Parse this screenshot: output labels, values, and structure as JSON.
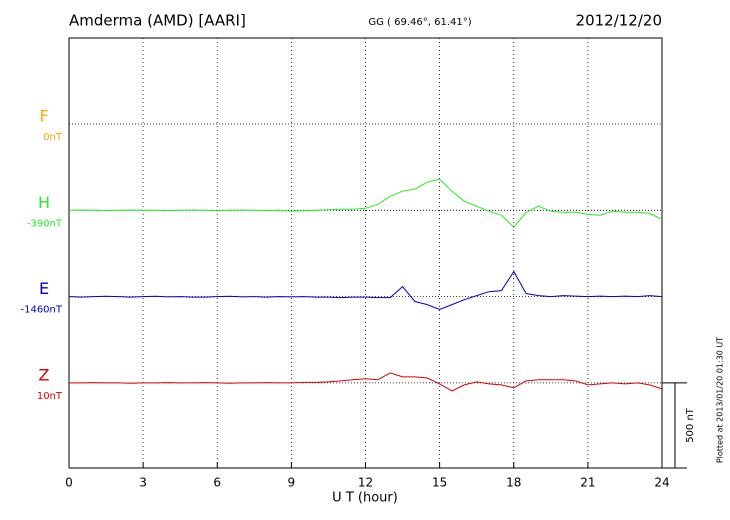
{
  "chart_data": {
    "type": "line",
    "title": "Amderma (AMD)  [AARI]",
    "subtitle": "GG ( 69.46°,  61.41°)",
    "date": "2012/12/20",
    "xlabel": "U T (hour)",
    "note": "Plotted at 2013/01/20 01:30 UT",
    "xlim": [
      0,
      24
    ],
    "xticks": [
      0,
      3,
      6,
      9,
      12,
      15,
      18,
      21,
      24
    ],
    "grid": true,
    "scale_bar": {
      "value": 500,
      "label": "500 nT"
    },
    "x": [
      0,
      0.5,
      1,
      1.5,
      2,
      2.5,
      3,
      3.5,
      4,
      4.5,
      5,
      5.5,
      6,
      6.5,
      7,
      7.5,
      8,
      8.5,
      9,
      9.5,
      10,
      10.5,
      11,
      11.5,
      12,
      12.5,
      13,
      13.5,
      14,
      14.5,
      15,
      15.5,
      16,
      16.5,
      17,
      17.5,
      18,
      18.5,
      19,
      19.5,
      20,
      20.5,
      21,
      21.5,
      22,
      22.5,
      23,
      23.5,
      24
    ],
    "series": [
      {
        "name": "F",
        "color": "#ffa500",
        "offset": {
          "value": 0,
          "label": "0nT"
        },
        "values": [
          null,
          null,
          null,
          null,
          null,
          null,
          null,
          null,
          null,
          null,
          null,
          null,
          null,
          null,
          null,
          null,
          null,
          null,
          null,
          null,
          null,
          null,
          null,
          null,
          null,
          null,
          null,
          null,
          null,
          null,
          null,
          null,
          null,
          null,
          null,
          null,
          null,
          null,
          null,
          null,
          null,
          null,
          null,
          null,
          null,
          null,
          null,
          null,
          null
        ]
      },
      {
        "name": "H",
        "color": "#22ee22",
        "offset": {
          "value": -390,
          "label": "-390nT"
        },
        "values": [
          0,
          2,
          0,
          -2,
          0,
          2,
          0,
          0,
          -2,
          0,
          2,
          0,
          -3,
          0,
          2,
          0,
          -2,
          0,
          -6,
          -3,
          0,
          3,
          6,
          6,
          12,
          35,
          82,
          112,
          124,
          165,
          182,
          112,
          53,
          24,
          -6,
          -29,
          -100,
          -12,
          24,
          -6,
          -12,
          -12,
          -24,
          -29,
          -6,
          -12,
          -12,
          -18,
          -53
        ]
      },
      {
        "name": "E",
        "color": "#0000cc",
        "offset": {
          "value": -1460,
          "label": "-1460nT"
        },
        "values": [
          0,
          -3,
          0,
          2,
          0,
          -3,
          0,
          2,
          -2,
          0,
          -3,
          -3,
          0,
          2,
          -2,
          0,
          -3,
          0,
          -2,
          0,
          -3,
          -3,
          -6,
          -3,
          -3,
          -6,
          -6,
          59,
          -29,
          -47,
          -76,
          -47,
          -18,
          6,
          29,
          35,
          147,
          18,
          6,
          0,
          6,
          3,
          0,
          3,
          0,
          3,
          0,
          6,
          0
        ]
      },
      {
        "name": "Z",
        "color": "#dd0000",
        "offset": {
          "value": 10,
          "label": "10nT"
        },
        "values": [
          0,
          0,
          2,
          0,
          0,
          -2,
          0,
          0,
          2,
          0,
          0,
          2,
          0,
          -2,
          0,
          0,
          2,
          0,
          0,
          3,
          3,
          6,
          12,
          18,
          24,
          18,
          59,
          35,
          35,
          29,
          -6,
          -47,
          -12,
          6,
          -6,
          -12,
          -29,
          12,
          18,
          18,
          18,
          12,
          -12,
          -6,
          0,
          -6,
          0,
          -12,
          -35
        ]
      }
    ]
  }
}
